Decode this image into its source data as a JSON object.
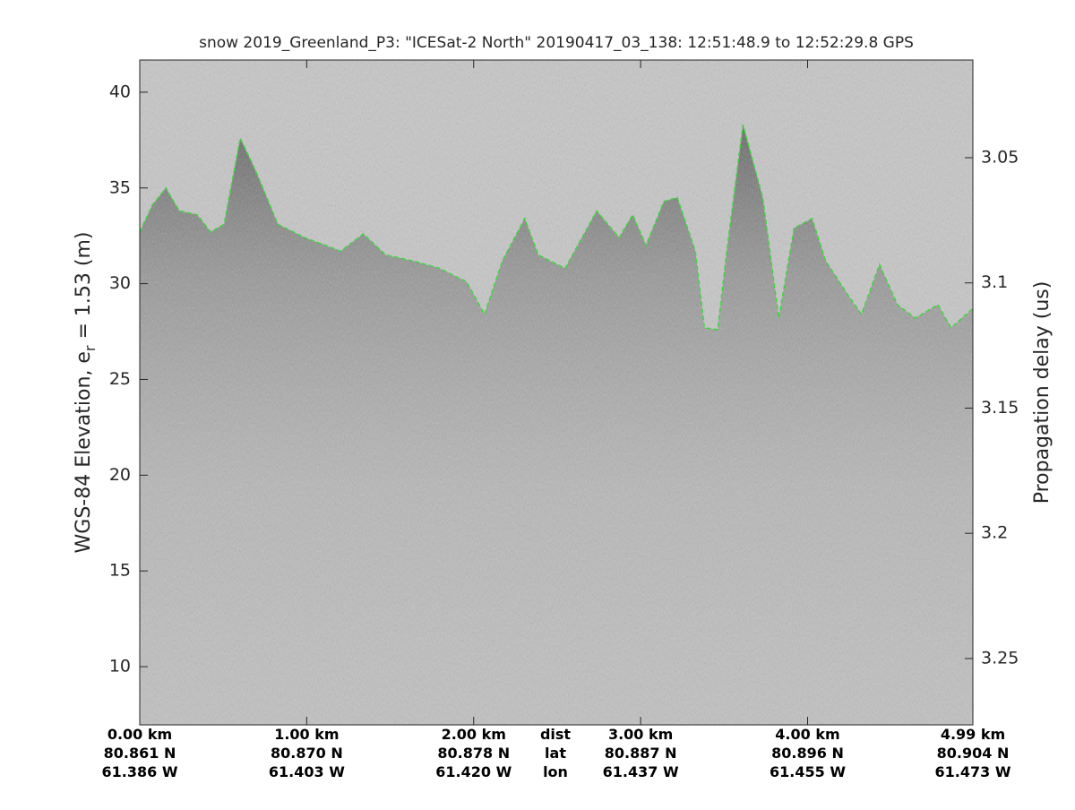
{
  "chart_data": {
    "type": "line",
    "title": "snow 2019_Greenland_P3: \"ICESat-2 North\"  20190417_03_138: 12:51:48.9 to 12:52:29.8 GPS",
    "ylabel": "WGS-84 Elevation, e",
    "ylabel_sub": "r",
    "ylabel_rest": " = 1.53 (m)",
    "y2label": "Propagation delay (us)",
    "xlim": [
      0,
      4.99
    ],
    "ylim": [
      6.96,
      41.68
    ],
    "yticks": [
      10,
      15,
      20,
      25,
      30,
      35,
      40
    ],
    "y2lim": [
      3.2765,
      3.011
    ],
    "y2ticks": [
      3.05,
      3.1,
      3.15,
      3.2,
      3.25
    ],
    "xticks": [
      {
        "value": 0,
        "label": "0.00 km"
      },
      {
        "value": 1,
        "label": "1.00 km"
      },
      {
        "value": 2,
        "label": "2.00 km"
      },
      {
        "value": 3,
        "label": "3.00 km"
      },
      {
        "value": 4,
        "label": "4.00 km"
      },
      {
        "value": 4.99,
        "label": "4.99 km"
      }
    ],
    "xtick_lat": [
      "80.861 N",
      "80.870 N",
      "80.878 N",
      "80.887 N",
      "80.896 N",
      "80.904 N"
    ],
    "xtick_lon": [
      "61.386 W",
      "61.403 W",
      "61.420 W",
      "61.437 W",
      "61.455 W",
      "61.473 W"
    ],
    "row_labels": [
      "dist",
      "lat",
      "lon"
    ],
    "color": "#22dd22",
    "x": [
      0,
      0.075,
      0.156,
      0.237,
      0.344,
      0.425,
      0.505,
      0.602,
      0.694,
      0.828,
      0.989,
      1.204,
      1.339,
      1.473,
      1.634,
      1.796,
      1.957,
      2.065,
      2.172,
      2.306,
      2.387,
      2.548,
      2.737,
      2.871,
      2.952,
      3.032,
      3.14,
      3.22,
      3.328,
      3.382,
      3.462,
      3.516,
      3.613,
      3.731,
      3.828,
      3.919,
      4.027,
      4.108,
      4.242,
      4.323,
      4.431,
      4.538,
      4.645,
      4.78,
      4.86,
      4.99
    ],
    "values": [
      32.7,
      34.1,
      35.0,
      33.8,
      33.6,
      32.7,
      33.1,
      37.6,
      35.9,
      33.1,
      32.4,
      31.7,
      32.6,
      31.5,
      31.2,
      30.8,
      30.1,
      28.4,
      31.2,
      33.4,
      31.5,
      30.8,
      33.8,
      32.4,
      33.6,
      32.0,
      34.3,
      34.5,
      31.7,
      27.7,
      27.6,
      31.7,
      38.3,
      34.5,
      28.2,
      32.9,
      33.4,
      31.2,
      29.4,
      28.4,
      31.0,
      28.9,
      28.2,
      28.9,
      27.7,
      28.7
    ]
  }
}
